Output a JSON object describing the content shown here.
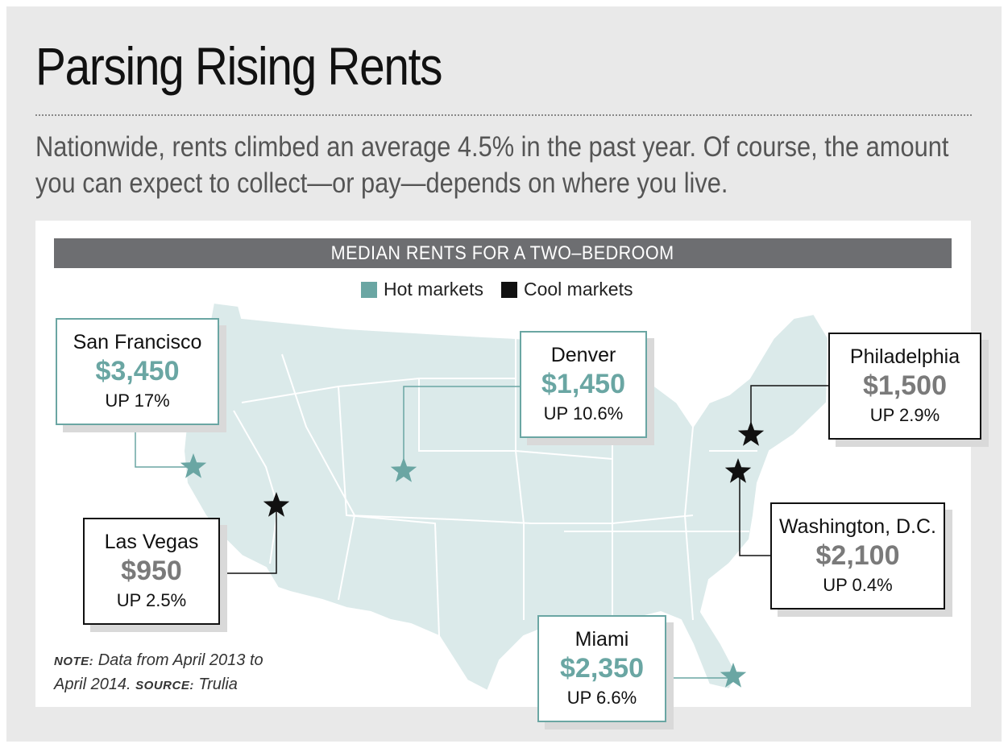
{
  "title": "Parsing Rising Rents",
  "subtitle": "Nationwide, rents climbed an average 4.5% in the past year. Of course, the amount you can expect to collect—or pay—depends on where you live.",
  "banner": "MEDIAN RENTS FOR A TWO–BEDROOM",
  "legend": {
    "hot_label": "Hot markets",
    "cool_label": "Cool markets"
  },
  "colors": {
    "hot": "#6aa6a3",
    "cool": "#111111",
    "land": "#dbeaea",
    "background": "#e9e9e9"
  },
  "cities": [
    {
      "name": "San Francisco",
      "price": "$3,450",
      "change": "UP 17%",
      "market": "hot"
    },
    {
      "name": "Denver",
      "price": "$1,450",
      "change": "UP 10.6%",
      "market": "hot"
    },
    {
      "name": "Philadelphia",
      "price": "$1,500",
      "change": "UP 2.9%",
      "market": "cool"
    },
    {
      "name": "Las Vegas",
      "price": "$950",
      "change": "UP 2.5%",
      "market": "cool"
    },
    {
      "name": "Washington, D.C.",
      "price": "$2,100",
      "change": "UP 0.4%",
      "market": "cool"
    },
    {
      "name": "Miami",
      "price": "$2,350",
      "change": "UP 6.6%",
      "market": "hot"
    }
  ],
  "note": {
    "note_label": "NOTE:",
    "note_text": " Data from April 2013 to",
    "note_text2": "April 2014. ",
    "source_label": "SOURCE:",
    "source_text": " Trulia"
  }
}
